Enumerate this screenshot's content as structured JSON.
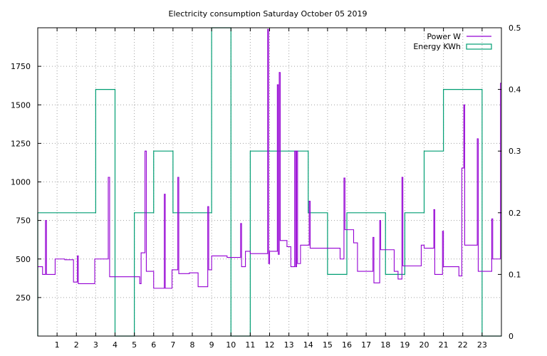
{
  "chart_data": {
    "type": "line",
    "title": "Electricity consumption Saturday October 05 2019",
    "xlabel": "",
    "ylabel": "",
    "grid": true,
    "legend_position": "top-right",
    "x_axis": {
      "range": [
        0,
        24
      ],
      "ticks": [
        1,
        2,
        3,
        4,
        5,
        6,
        7,
        8,
        9,
        10,
        11,
        12,
        13,
        14,
        15,
        16,
        17,
        18,
        19,
        20,
        21,
        22,
        23
      ]
    },
    "y_axis_left": {
      "range": [
        0,
        2000
      ],
      "ticks": [
        250,
        500,
        750,
        1000,
        1250,
        1500,
        1750
      ]
    },
    "y_axis_right": {
      "range": [
        0,
        0.5
      ],
      "ticks": [
        0,
        0.1,
        0.2,
        0.3,
        0.4,
        0.5
      ],
      "tick_labels": [
        "0",
        "0.1",
        "0.2",
        "0.3",
        "0.4",
        "0.5"
      ]
    },
    "series": [
      {
        "name": "Power W",
        "axis": "left",
        "color": "#9400d3",
        "style": "step-line",
        "points": [
          [
            0,
            450
          ],
          [
            0.25,
            400
          ],
          [
            0.4,
            750
          ],
          [
            0.45,
            400
          ],
          [
            0.9,
            500
          ],
          [
            1.4,
            495
          ],
          [
            1.85,
            350
          ],
          [
            2.05,
            520
          ],
          [
            2.1,
            340
          ],
          [
            2.95,
            500
          ],
          [
            3.65,
            1030
          ],
          [
            3.72,
            385
          ],
          [
            4.35,
            385
          ],
          [
            5.05,
            385
          ],
          [
            5.28,
            340
          ],
          [
            5.35,
            540
          ],
          [
            5.55,
            1200
          ],
          [
            5.62,
            420
          ],
          [
            6.0,
            310
          ],
          [
            6.55,
            920
          ],
          [
            6.6,
            310
          ],
          [
            6.95,
            430
          ],
          [
            7.25,
            1030
          ],
          [
            7.3,
            405
          ],
          [
            7.85,
            410
          ],
          [
            8.3,
            320
          ],
          [
            8.8,
            840
          ],
          [
            8.85,
            430
          ],
          [
            9.0,
            520
          ],
          [
            9.8,
            510
          ],
          [
            10.5,
            730
          ],
          [
            10.55,
            450
          ],
          [
            10.75,
            550
          ],
          [
            11.0,
            535
          ],
          [
            11.9,
            1990
          ],
          [
            11.95,
            470
          ],
          [
            12.0,
            550
          ],
          [
            12.4,
            1630
          ],
          [
            12.45,
            530
          ],
          [
            12.5,
            1710
          ],
          [
            12.55,
            620
          ],
          [
            12.9,
            580
          ],
          [
            13.1,
            450
          ],
          [
            13.3,
            1200
          ],
          [
            13.35,
            450
          ],
          [
            13.4,
            1200
          ],
          [
            13.45,
            470
          ],
          [
            13.6,
            590
          ],
          [
            14.05,
            875
          ],
          [
            14.1,
            570
          ],
          [
            15.65,
            500
          ],
          [
            15.85,
            1025
          ],
          [
            15.9,
            690
          ],
          [
            16.35,
            605
          ],
          [
            16.55,
            420
          ],
          [
            17.35,
            640
          ],
          [
            17.4,
            345
          ],
          [
            17.7,
            750
          ],
          [
            17.75,
            560
          ],
          [
            18.45,
            420
          ],
          [
            18.65,
            370
          ],
          [
            18.85,
            1030
          ],
          [
            18.9,
            455
          ],
          [
            19.85,
            590
          ],
          [
            20.0,
            570
          ],
          [
            20.5,
            820
          ],
          [
            20.55,
            400
          ],
          [
            20.95,
            680
          ],
          [
            21.0,
            450
          ],
          [
            21.8,
            390
          ],
          [
            21.95,
            1090
          ],
          [
            22.05,
            1500
          ],
          [
            22.1,
            590
          ],
          [
            22.75,
            1280
          ],
          [
            22.8,
            420
          ],
          [
            23.5,
            760
          ],
          [
            23.55,
            500
          ],
          [
            23.95,
            1640
          ]
        ]
      },
      {
        "name": "Energy KWh",
        "axis": "right",
        "color": "#009e73",
        "style": "steps",
        "values": [
          0.2,
          0.2,
          0.2,
          0.4,
          0,
          0.2,
          0.3,
          0.2,
          0.2,
          0.5,
          0,
          0.3,
          0.3,
          0.3,
          0.2,
          0.1,
          0.2,
          0.2,
          0.1,
          0.2,
          0.3,
          0.4,
          0.4,
          0
        ]
      }
    ]
  }
}
